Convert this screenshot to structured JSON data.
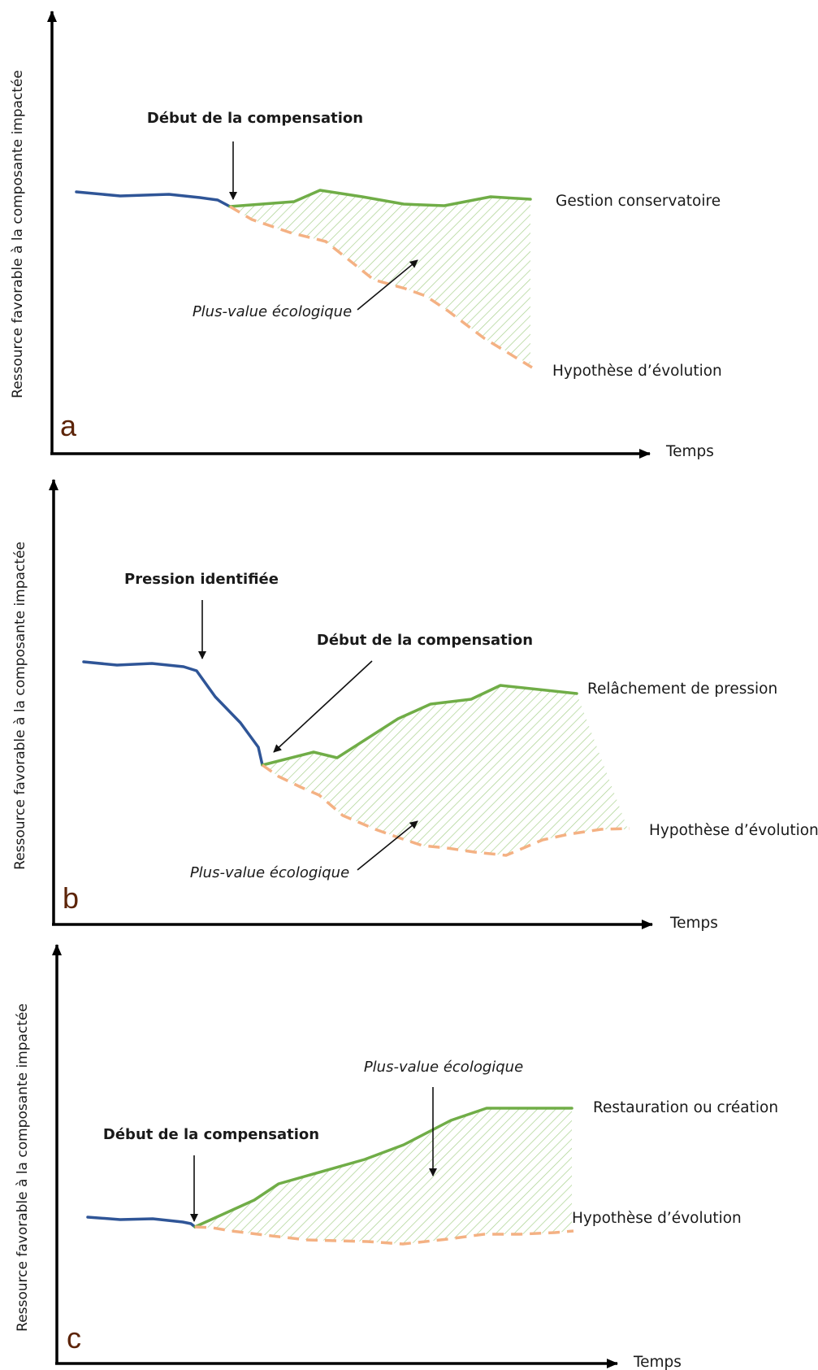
{
  "panels": [
    {
      "letter": "a",
      "y_axis_label": "Ressource favorable  à la composante impactée",
      "x_axis_label": "Temps",
      "start_label": "Début de la compensation",
      "gain_label": "Plus-value écologique",
      "managed_label": "Gestion conservatoire",
      "baseline_label": "Hypothèse d’évolution"
    },
    {
      "letter": "b",
      "y_axis_label": "Ressource favorable  à la composante impactée",
      "x_axis_label": "Temps",
      "pressure_label": "Pression identifiée",
      "start_label": "Début de la compensation",
      "gain_label": "Plus-value écologique",
      "managed_label": "Relâchement de pression",
      "baseline_label": "Hypothèse d’évolution"
    },
    {
      "letter": "c",
      "y_axis_label": "Ressource favorable  à la composante impactée",
      "x_axis_label": "Temps",
      "start_label": "Début de la compensation",
      "gain_label": "Plus-value écologique",
      "managed_label": "Restauration ou création",
      "baseline_label": "Hypothèse d’évolution"
    }
  ],
  "colors": {
    "before": "#2f5597",
    "after_compensation": "#70ad47",
    "baseline": "#f4b183",
    "panel_letter": "#5c2408"
  },
  "icons": [
    "arrow-down-icon",
    "arrow-diagonal-icon"
  ]
}
